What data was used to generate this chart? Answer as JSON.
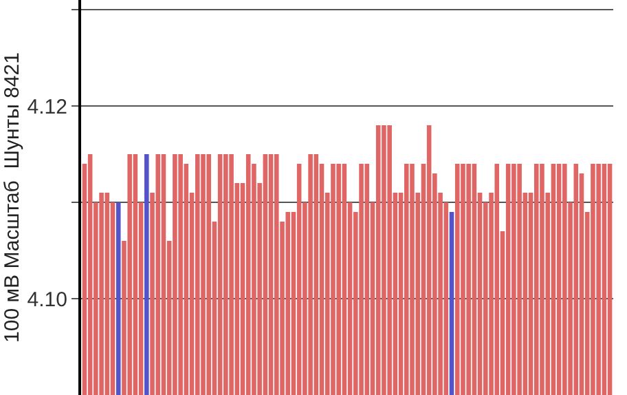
{
  "chart_data": {
    "type": "bar",
    "ylabel": "100 мВ Масштаб  Шунты 8421",
    "categories": [
      null,
      null,
      null,
      null,
      null,
      null,
      null,
      null,
      null,
      null,
      null,
      null,
      null,
      null,
      null,
      null,
      null,
      null,
      null,
      null,
      null,
      null,
      null,
      null,
      null,
      null,
      null,
      null,
      null,
      null,
      null,
      null,
      null,
      null,
      null,
      null,
      null,
      null,
      null,
      null,
      null,
      null,
      null,
      null,
      null,
      null,
      null,
      null,
      null,
      null,
      null,
      null,
      null,
      null,
      null,
      null,
      null,
      null,
      null,
      null,
      null,
      null,
      null,
      null,
      null,
      null,
      null,
      null,
      null,
      null,
      null,
      null,
      null,
      null,
      null,
      null,
      null,
      null,
      null,
      null,
      null,
      null,
      null,
      null,
      null,
      null,
      null,
      null,
      null,
      null,
      null,
      null,
      null,
      null
    ],
    "values": [
      4.114,
      4.115,
      4.11,
      4.111,
      4.111,
      4.11,
      4.11,
      4.106,
      4.115,
      4.115,
      4.11,
      4.115,
      4.111,
      4.115,
      4.115,
      4.106,
      4.115,
      4.115,
      4.114,
      4.111,
      4.115,
      4.115,
      4.115,
      4.108,
      4.115,
      4.115,
      4.115,
      4.112,
      4.112,
      4.115,
      4.114,
      4.112,
      4.115,
      4.115,
      4.115,
      4.108,
      4.109,
      4.109,
      4.114,
      4.11,
      4.115,
      4.115,
      4.114,
      4.111,
      4.114,
      4.114,
      4.114,
      4.11,
      4.109,
      4.114,
      4.114,
      4.11,
      4.118,
      4.118,
      4.118,
      4.111,
      4.111,
      4.114,
      4.114,
      4.111,
      4.114,
      4.118,
      4.113,
      4.111,
      4.11,
      4.109,
      4.114,
      4.114,
      4.114,
      4.114,
      4.111,
      4.11,
      4.111,
      4.114,
      4.107,
      4.114,
      4.114,
      4.114,
      4.111,
      4.111,
      4.114,
      4.114,
      4.111,
      4.114,
      4.114,
      4.114,
      4.11,
      4.114,
      4.113,
      4.109,
      4.114,
      4.114,
      4.114,
      4.114
    ],
    "colors": [
      "#e06666",
      "#e06666",
      "#e06666",
      "#e06666",
      "#e06666",
      "#e06666",
      "#5454c8",
      "#e06666",
      "#e06666",
      "#e06666",
      "#e06666",
      "#5454c8",
      "#e06666",
      "#e06666",
      "#e06666",
      "#e06666",
      "#e06666",
      "#e06666",
      "#e06666",
      "#e06666",
      "#e06666",
      "#e06666",
      "#e06666",
      "#e06666",
      "#e06666",
      "#e06666",
      "#e06666",
      "#e06666",
      "#e06666",
      "#e06666",
      "#e06666",
      "#e06666",
      "#e06666",
      "#e06666",
      "#e06666",
      "#e06666",
      "#e06666",
      "#e06666",
      "#e06666",
      "#e06666",
      "#e06666",
      "#e06666",
      "#e06666",
      "#e06666",
      "#e06666",
      "#e06666",
      "#e06666",
      "#e06666",
      "#e06666",
      "#e06666",
      "#e06666",
      "#e06666",
      "#e06666",
      "#e06666",
      "#e06666",
      "#e06666",
      "#e06666",
      "#e06666",
      "#e06666",
      "#e06666",
      "#e06666",
      "#e06666",
      "#e06666",
      "#e06666",
      "#e06666",
      "#5454c8",
      "#e06666",
      "#e06666",
      "#e06666",
      "#e06666",
      "#e06666",
      "#e06666",
      "#e06666",
      "#e06666",
      "#e06666",
      "#e06666",
      "#e06666",
      "#e06666",
      "#e06666",
      "#e06666",
      "#e06666",
      "#e06666",
      "#e06666",
      "#e06666",
      "#e06666",
      "#e06666",
      "#e06666",
      "#e06666",
      "#e06666",
      "#e06666",
      "#e06666",
      "#e06666",
      "#e06666",
      "#e06666"
    ],
    "ylim": [
      4.09,
      4.131
    ],
    "yticks": [
      {
        "value": 4.1,
        "label": "4.10"
      },
      {
        "value": 4.11,
        "label": null
      },
      {
        "value": 4.12,
        "label": "4.12"
      },
      {
        "value": 4.13,
        "label": null
      }
    ],
    "grid": "y",
    "tick_labels": "y"
  }
}
